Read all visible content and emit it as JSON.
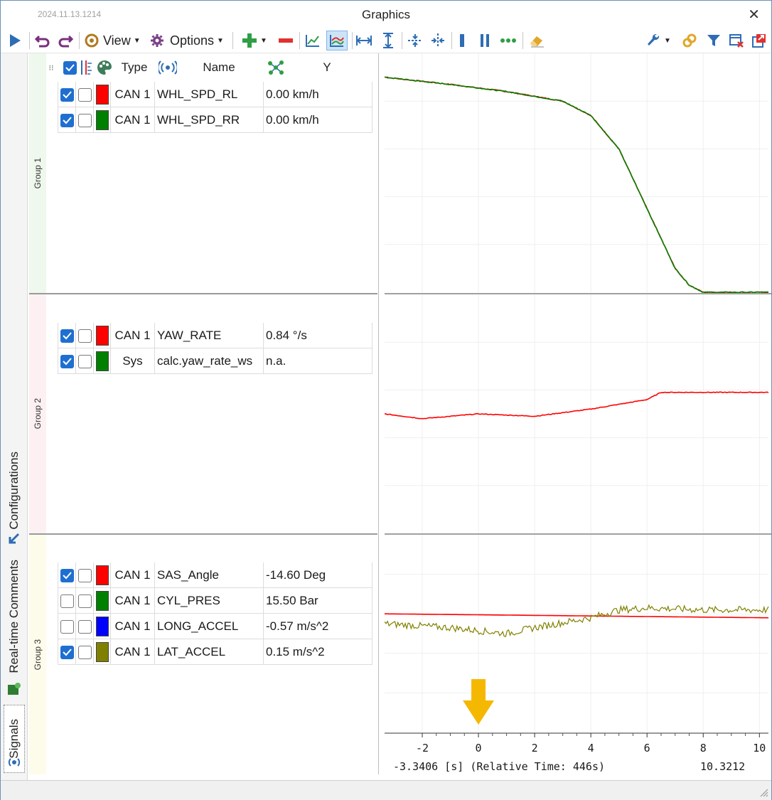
{
  "window": {
    "version": "2024.11.13.1214",
    "title": "Graphics"
  },
  "toolbar": {
    "view_label": "View",
    "options_label": "Options",
    "items": [
      "play-icon",
      "undo-icon",
      "redo-icon",
      "view-menu",
      "options-menu",
      "add-signal",
      "remove-signal",
      "line-chart-icon",
      "multi-line-chart-icon",
      "fit-horizontal-icon",
      "fit-vertical-icon",
      "cursor-split-h-icon",
      "cursor-split-v-icon",
      "single-cursor-icon",
      "dual-cursor-icon",
      "more-cursors-icon",
      "eraser-icon",
      "wrench-icon",
      "link-icon",
      "filter-icon",
      "close-panel-icon",
      "popout-icon"
    ]
  },
  "side_tabs": [
    "Configurations",
    "Real-time Comments",
    "Signals"
  ],
  "table": {
    "headers": {
      "type": "Type",
      "name": "Name",
      "y": "Y"
    },
    "groups": [
      {
        "name": "Group 1",
        "rows": [
          {
            "checked": true,
            "locked": false,
            "color": "#ff0000",
            "type": "CAN 1",
            "name": "WHL_SPD_RL",
            "value": "0.00 km/h"
          },
          {
            "checked": true,
            "locked": false,
            "color": "#008000",
            "type": "CAN 1",
            "name": "WHL_SPD_RR",
            "value": "0.00 km/h"
          }
        ]
      },
      {
        "name": "Group 2",
        "rows": [
          {
            "checked": true,
            "locked": false,
            "color": "#ff0000",
            "type": "CAN 1",
            "name": "YAW_RATE",
            "value": "0.84 °/s"
          },
          {
            "checked": true,
            "locked": false,
            "color": "#008000",
            "type": "Sys",
            "name": "calc.yaw_rate_ws",
            "value": "n.a."
          }
        ]
      },
      {
        "name": "Group 3",
        "rows": [
          {
            "checked": true,
            "locked": false,
            "color": "#ff0000",
            "type": "CAN 1",
            "name": "SAS_Angle",
            "value": "-14.60 Deg"
          },
          {
            "checked": false,
            "locked": false,
            "color": "#008000",
            "type": "CAN 1",
            "name": "CYL_PRES",
            "value": "15.50 Bar"
          },
          {
            "checked": false,
            "locked": false,
            "color": "#0000ff",
            "type": "CAN 1",
            "name": "LONG_ACCEL",
            "value": "-0.57 m/s^2"
          },
          {
            "checked": true,
            "locked": false,
            "color": "#808000",
            "type": "CAN 1",
            "name": "LAT_ACCEL",
            "value": "0.15 m/s^2"
          }
        ]
      }
    ]
  },
  "plot": {
    "x_ticks": [
      "-2",
      "0",
      "2",
      "4",
      "6",
      "8",
      "10"
    ],
    "cursor_readout": "-3.3406 [s] (Relative Time: 446s)",
    "x_end_readout": "10.3212",
    "marker_color": "#f5b800"
  },
  "chart_data": [
    {
      "type": "line",
      "panel": "Group 1",
      "xlim": [
        -3.3406,
        10.3212
      ],
      "series": [
        {
          "name": "WHL_SPD_RL",
          "color": "#ff0000",
          "x": [
            -3.34,
            -1,
            1,
            3,
            4,
            5,
            6,
            7,
            7.5,
            8,
            10.32
          ],
          "y": [
            0.9,
            0.87,
            0.84,
            0.8,
            0.74,
            0.6,
            0.35,
            0.1,
            0.03,
            0.0,
            0.0
          ]
        },
        {
          "name": "WHL_SPD_RR",
          "color": "#008000",
          "x": [
            -3.34,
            -1,
            1,
            3,
            4,
            5,
            6,
            7,
            7.5,
            8,
            10.32
          ],
          "y": [
            0.9,
            0.87,
            0.84,
            0.8,
            0.74,
            0.6,
            0.35,
            0.1,
            0.03,
            0.0,
            0.0
          ]
        }
      ]
    },
    {
      "type": "line",
      "panel": "Group 2",
      "xlim": [
        -3.3406,
        10.3212
      ],
      "series": [
        {
          "name": "YAW_RATE",
          "color": "#ff0000",
          "x": [
            -3.34,
            -2,
            0,
            2,
            4,
            6,
            6.5,
            10.32
          ],
          "y": [
            0.5,
            0.48,
            0.5,
            0.49,
            0.52,
            0.56,
            0.59,
            0.59
          ]
        }
      ]
    },
    {
      "type": "line",
      "panel": "Group 3",
      "xlim": [
        -3.3406,
        10.3212
      ],
      "series": [
        {
          "name": "SAS_Angle",
          "color": "#ff0000",
          "x": [
            -3.34,
            10.32
          ],
          "y": [
            0.6,
            0.58
          ]
        },
        {
          "name": "LAT_ACCEL",
          "color": "#808000",
          "x": [
            -3.34,
            -1,
            1,
            2,
            4,
            5,
            6,
            8,
            10.32
          ],
          "y": [
            0.55,
            0.53,
            0.5,
            0.53,
            0.58,
            0.62,
            0.63,
            0.62,
            0.62
          ]
        }
      ]
    }
  ]
}
